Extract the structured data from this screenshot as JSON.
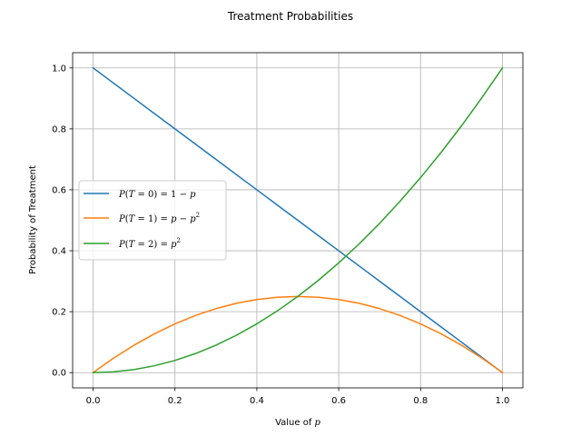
{
  "chart_data": {
    "type": "line",
    "title": "Treatment Probabilities",
    "xlabel_text": "Value of ",
    "xlabel_var": "p",
    "ylabel": "Probability of Treatment",
    "xlim": [
      -0.05,
      1.05
    ],
    "ylim": [
      -0.05,
      1.05
    ],
    "grid": true,
    "legend_position": "center-left",
    "x_ticks": [
      0.0,
      0.2,
      0.4,
      0.6,
      0.8,
      1.0
    ],
    "x_tick_labels": [
      "0.0",
      "0.2",
      "0.4",
      "0.6",
      "0.8",
      "1.0"
    ],
    "y_ticks": [
      0.0,
      0.2,
      0.4,
      0.6,
      0.8,
      1.0
    ],
    "y_tick_labels": [
      "0.0",
      "0.2",
      "0.4",
      "0.6",
      "0.8",
      "1.0"
    ],
    "x": [
      0.0,
      0.05,
      0.1,
      0.15,
      0.2,
      0.25,
      0.3,
      0.35,
      0.4,
      0.45,
      0.5,
      0.55,
      0.6,
      0.65,
      0.7,
      0.75,
      0.8,
      0.85,
      0.9,
      0.95,
      1.0
    ],
    "series": [
      {
        "name": "P(T = 0) = 1 − p",
        "color": "#1f77b4",
        "values": [
          1.0,
          0.95,
          0.9,
          0.85,
          0.8,
          0.75,
          0.7,
          0.65,
          0.6,
          0.55,
          0.5,
          0.45,
          0.4,
          0.35,
          0.3,
          0.25,
          0.2,
          0.15,
          0.1,
          0.05,
          0.0
        ]
      },
      {
        "name": "P(T = 1) = p − p²",
        "color": "#ff7f0e",
        "values": [
          0.0,
          0.0475,
          0.09,
          0.1275,
          0.16,
          0.1875,
          0.21,
          0.2275,
          0.24,
          0.2475,
          0.25,
          0.2475,
          0.24,
          0.2275,
          0.21,
          0.1875,
          0.16,
          0.1275,
          0.09,
          0.0475,
          0.0
        ]
      },
      {
        "name": "P(T = 2) = p²",
        "color": "#2ca02c",
        "values": [
          0.0,
          0.0025,
          0.01,
          0.0225,
          0.04,
          0.0625,
          0.09,
          0.1225,
          0.16,
          0.2025,
          0.25,
          0.3025,
          0.36,
          0.4225,
          0.49,
          0.5625,
          0.64,
          0.7225,
          0.81,
          0.9025,
          1.0
        ]
      }
    ]
  }
}
